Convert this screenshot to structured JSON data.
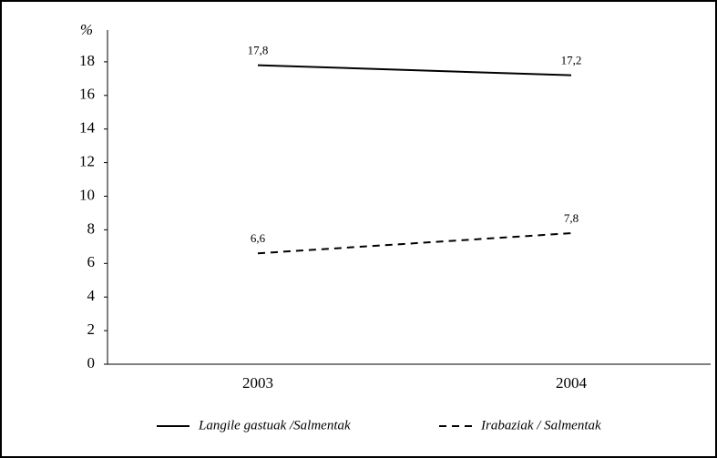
{
  "chart_data": {
    "type": "line",
    "ylabel": "%",
    "categories": [
      "2003",
      "2004"
    ],
    "series": [
      {
        "name": "Langile gastuak /Salmentak",
        "color": "#000000",
        "dash": "solid",
        "values": [
          17.8,
          17.2
        ],
        "value_labels": [
          "17,8",
          "17,2"
        ]
      },
      {
        "name": "Irabaziak / Salmentak",
        "color": "#000000",
        "dash": "dashed",
        "values": [
          6.6,
          7.8
        ],
        "value_labels": [
          "6,6",
          "7,8"
        ]
      }
    ],
    "ylim": [
      0,
      20
    ],
    "yticks": [
      0,
      2,
      4,
      6,
      8,
      10,
      12,
      14,
      16,
      18
    ],
    "grid": false,
    "legend": "bottom"
  }
}
